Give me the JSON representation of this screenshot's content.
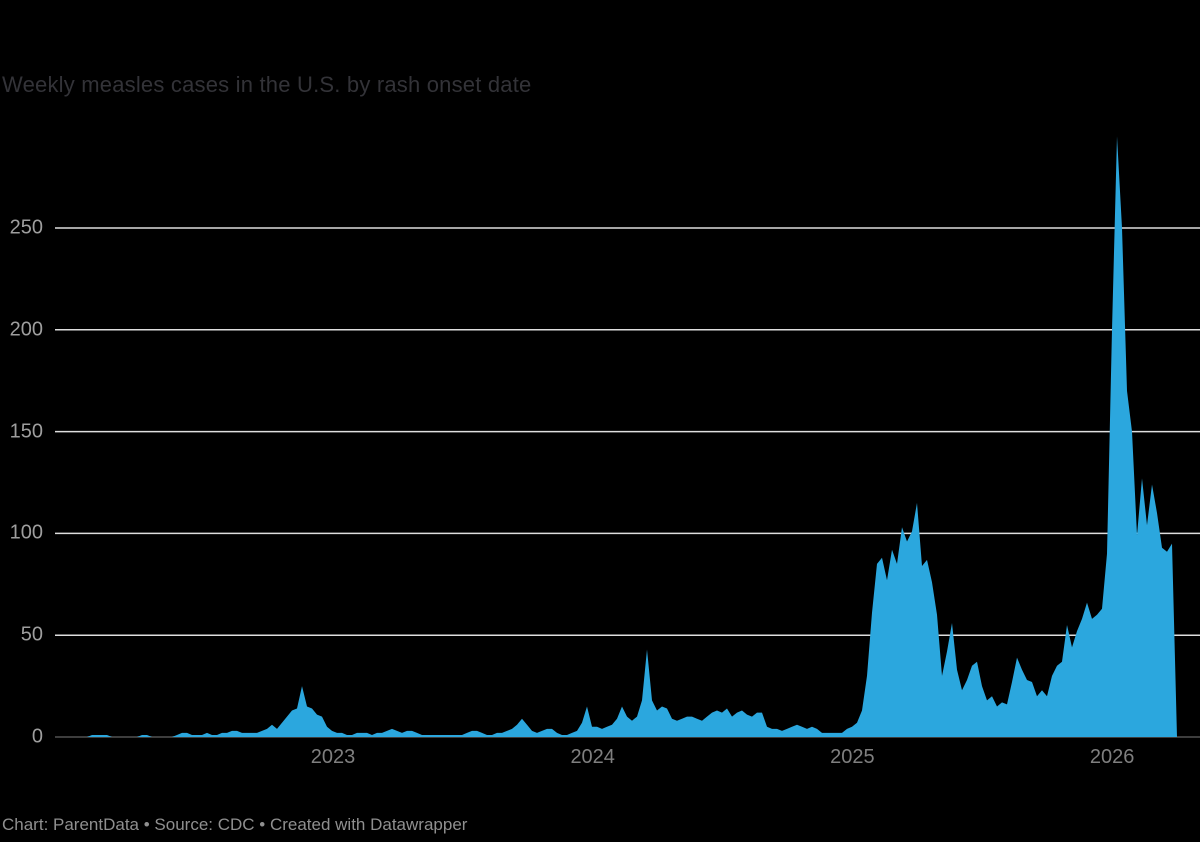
{
  "header": {
    "title": "Weekly measles cases in the U.S. by rash onset date"
  },
  "footer": {
    "attribution": "Chart: ParentData • Source: CDC • Created with Datawrapper"
  },
  "colors": {
    "background": "#000000",
    "area": "#2BA7DE",
    "gridline": "#dedede",
    "zero_baseline": "#3d3d3d",
    "title_text": "#333338",
    "y_tick_text": "#9e9e9e",
    "x_tick_text": "#7f7f7f",
    "footer_text": "#8f8f8f"
  },
  "chart_data": {
    "type": "area",
    "title": "Weekly measles cases in the U.S. by rash onset date",
    "xlabel": "",
    "ylabel": "",
    "x_unit": "week of rash onset",
    "x_start": "2021-12-12",
    "x_step_days": 7,
    "x_end": "2026-03-29",
    "x_ticks": [
      "2023",
      "2024",
      "2025",
      "2026"
    ],
    "y_ticks": [
      0,
      50,
      100,
      150,
      200,
      250
    ],
    "ylim": [
      0,
      300
    ],
    "grid": "horizontal",
    "legend": "none",
    "series_name": "Weekly measles cases",
    "values": [
      0,
      0,
      0,
      0,
      0,
      0,
      0,
      1,
      1,
      1,
      1,
      0,
      0,
      0,
      0,
      0,
      0,
      1,
      1,
      0,
      0,
      0,
      0,
      0,
      1,
      2,
      2,
      1,
      1,
      1,
      2,
      1,
      1,
      2,
      2,
      3,
      3,
      2,
      2,
      2,
      2,
      3,
      4,
      6,
      4,
      7,
      10,
      13,
      14,
      25,
      15,
      14,
      11,
      10,
      5,
      3,
      2,
      2,
      1,
      1,
      2,
      2,
      2,
      1,
      2,
      2,
      3,
      4,
      3,
      2,
      3,
      3,
      2,
      1,
      1,
      1,
      1,
      1,
      1,
      1,
      1,
      1,
      2,
      3,
      3,
      2,
      1,
      1,
      2,
      2,
      3,
      4,
      6,
      9,
      6,
      3,
      2,
      3,
      4,
      4,
      2,
      1,
      1,
      2,
      3,
      7,
      15,
      5,
      5,
      4,
      5,
      6,
      9,
      15,
      10,
      8,
      10,
      18,
      43,
      18,
      13,
      15,
      14,
      9,
      8,
      9,
      10,
      10,
      9,
      8,
      10,
      12,
      13,
      12,
      14,
      10,
      12,
      13,
      11,
      10,
      12,
      12,
      5,
      4,
      4,
      3,
      4,
      5,
      6,
      5,
      4,
      5,
      4,
      2,
      2,
      2,
      2,
      2,
      4,
      5,
      7,
      13,
      30,
      61,
      85,
      88,
      77,
      92,
      85,
      103,
      96,
      101,
      115,
      84,
      87,
      76,
      60,
      30,
      42,
      56,
      33,
      23,
      28,
      35,
      37,
      25,
      18,
      20,
      15,
      17,
      16,
      27,
      39,
      33,
      28,
      27,
      20,
      23,
      20,
      30,
      35,
      37,
      55,
      44,
      52,
      58,
      66,
      58,
      60,
      63,
      90,
      200,
      295,
      250,
      170,
      150,
      99,
      127,
      104,
      124,
      110,
      93,
      91,
      95,
      0
    ]
  }
}
